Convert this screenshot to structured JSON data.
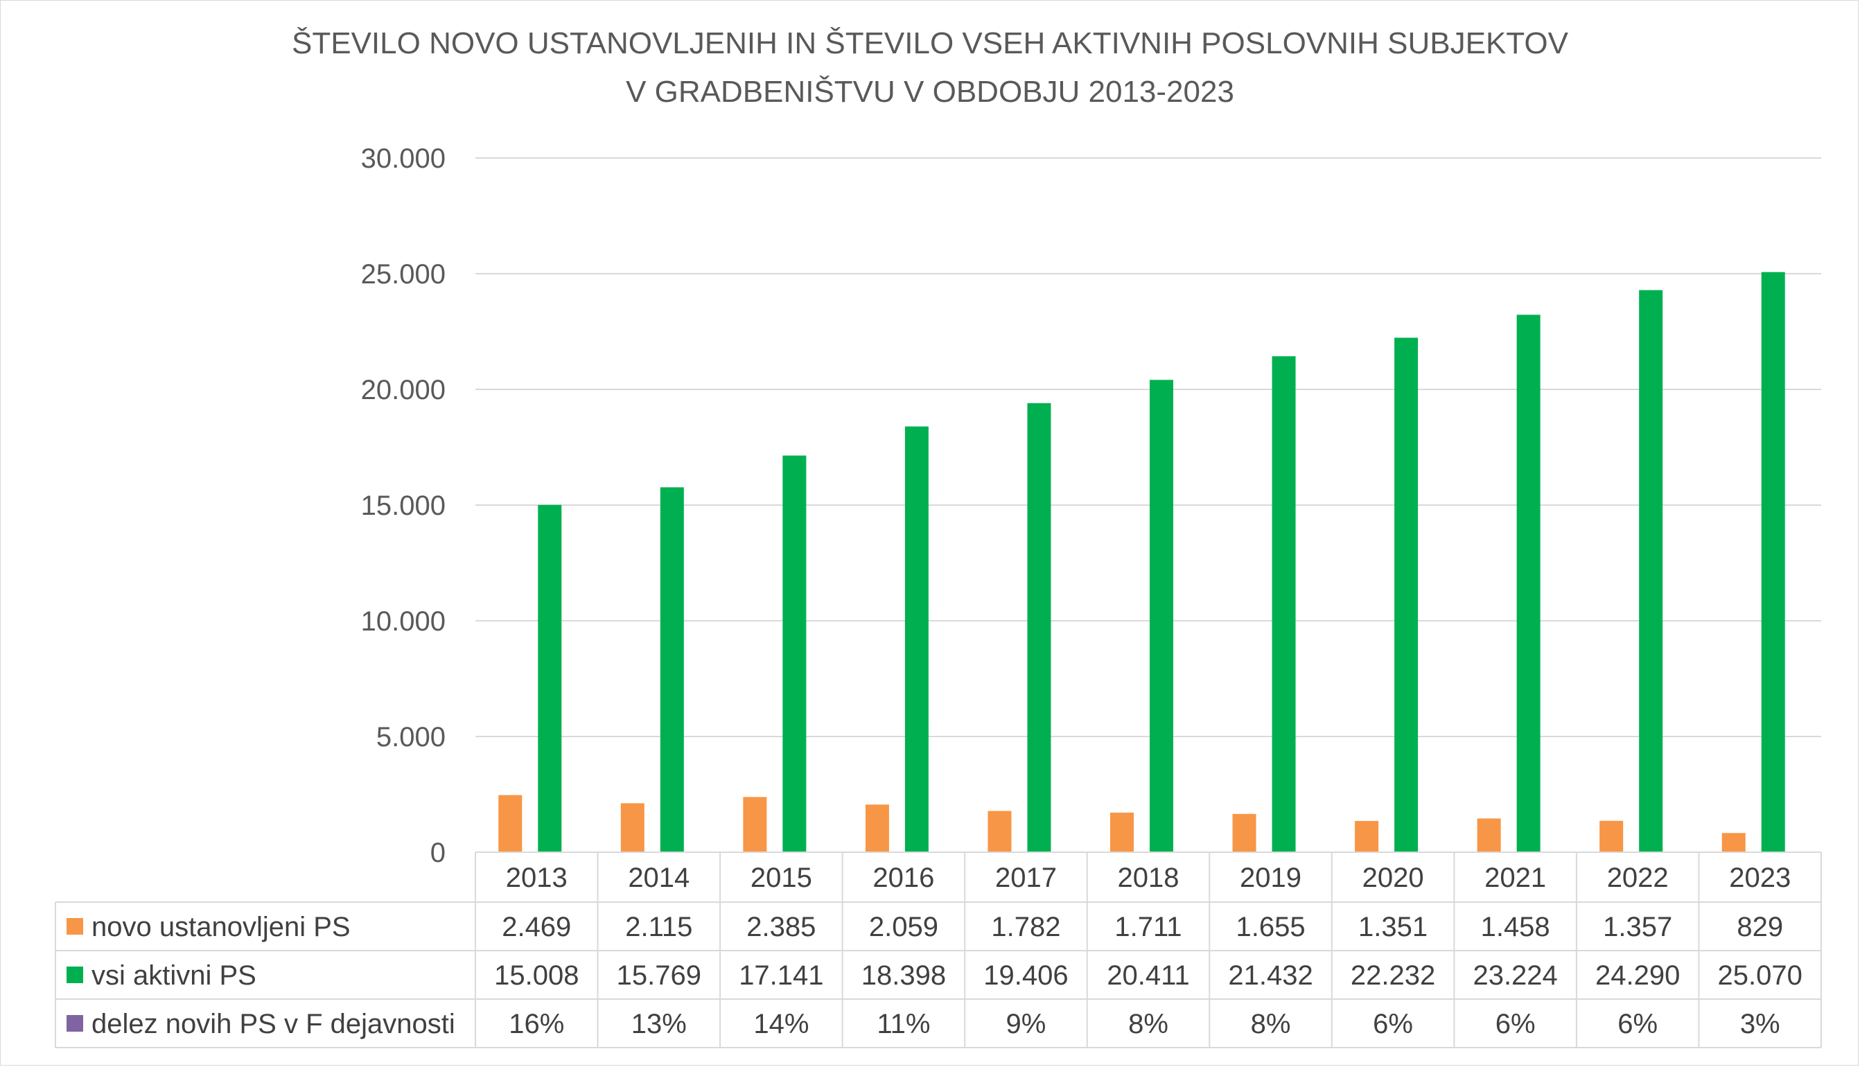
{
  "chart_data": {
    "type": "bar",
    "title_lines": [
      "ŠTEVILO NOVO USTANOVLJENIH IN ŠTEVILO VSEH AKTIVNIH POSLOVNIH SUBJEKTOV",
      "V GRADBENIŠTVU V OBDOBJU 2013-2023"
    ],
    "categories": [
      "2013",
      "2014",
      "2015",
      "2016",
      "2017",
      "2018",
      "2019",
      "2020",
      "2021",
      "2022",
      "2023"
    ],
    "series": [
      {
        "name": "novo ustanovljeni PS",
        "color": "#f79646",
        "values": [
          2469,
          2115,
          2385,
          2059,
          1782,
          1711,
          1655,
          1351,
          1458,
          1357,
          829
        ],
        "labels": [
          "2.469",
          "2.115",
          "2.385",
          "2.059",
          "1.782",
          "1.711",
          "1.655",
          "1.351",
          "1.458",
          "1.357",
          "829"
        ]
      },
      {
        "name": "vsi aktivni PS",
        "color": "#00b050",
        "values": [
          15008,
          15769,
          17141,
          18398,
          19406,
          20411,
          21432,
          22232,
          23224,
          24290,
          25070
        ],
        "labels": [
          "15.008",
          "15.769",
          "17.141",
          "18.398",
          "19.406",
          "20.411",
          "21.432",
          "22.232",
          "23.224",
          "24.290",
          "25.070"
        ]
      },
      {
        "name": "delez novih PS v F dejavnosti",
        "color": "#8064a2",
        "values": [
          16,
          13,
          14,
          11,
          9,
          8,
          8,
          6,
          6,
          6,
          3
        ],
        "labels": [
          "16%",
          "13%",
          "14%",
          "11%",
          "9%",
          "8%",
          "8%",
          "6%",
          "6%",
          "6%",
          "3%"
        ]
      }
    ],
    "ylim": [
      0,
      30000
    ],
    "yticks": [
      0,
      5000,
      10000,
      15000,
      20000,
      25000,
      30000
    ],
    "ytick_labels": [
      "0",
      "5.000",
      "10.000",
      "15.000",
      "20.000",
      "25.000",
      "30.000"
    ],
    "grid": true,
    "legend": "data-table"
  }
}
